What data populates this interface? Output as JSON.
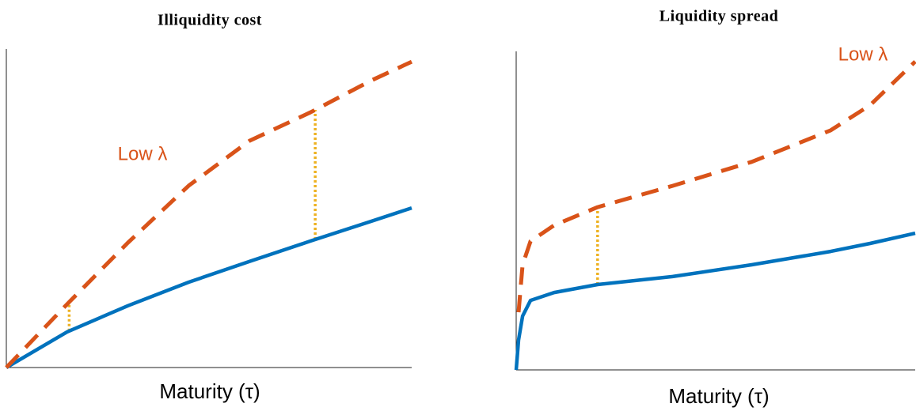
{
  "chart_data": [
    {
      "type": "line",
      "title": "Illiquidity cost",
      "xlabel": "Maturity (τ)",
      "annotation": "Low λ",
      "annotation_color": "#D95319",
      "xlim": [
        0,
        1
      ],
      "ylim": [
        0,
        1
      ],
      "x": [
        0,
        0.15,
        0.3,
        0.45,
        0.6,
        0.75,
        0.9,
        1.0
      ],
      "series": [
        {
          "color": "#0072BD",
          "style": "solid",
          "values": [
            0,
            0.112,
            0.194,
            0.268,
            0.333,
            0.397,
            0.459,
            0.501
          ]
        },
        {
          "color": "#D95319",
          "style": "dashed",
          "values": [
            0,
            0.199,
            0.392,
            0.571,
            0.712,
            0.801,
            0.901,
            0.96
          ]
        }
      ],
      "gap_x": [
        0.155,
        0.762
      ],
      "gap_color": "#EDB120"
    },
    {
      "type": "line",
      "title": "Liquidity spread",
      "xlabel": "Maturity (τ)",
      "annotation": "Low λ",
      "annotation_color": "#D95319",
      "xlim": [
        0,
        1
      ],
      "ylim": [
        0,
        1
      ],
      "x": [
        0,
        0.006,
        0.016,
        0.036,
        0.095,
        0.204,
        0.392,
        0.59,
        0.788,
        0.887,
        1.0
      ],
      "series": [
        {
          "color": "#0072BD",
          "style": "solid",
          "values": [
            0,
            0.094,
            0.169,
            0.218,
            0.243,
            0.268,
            0.293,
            0.33,
            0.372,
            0.397,
            0.429
          ]
        },
        {
          "color": "#D95319",
          "style": "dashed",
          "values": [
            null,
            0.181,
            0.33,
            0.404,
            0.454,
            0.511,
            0.578,
            0.653,
            0.752,
            0.831,
            0.968
          ]
        }
      ],
      "gap_x": [
        0.204
      ],
      "gap_color": "#EDB120"
    }
  ]
}
